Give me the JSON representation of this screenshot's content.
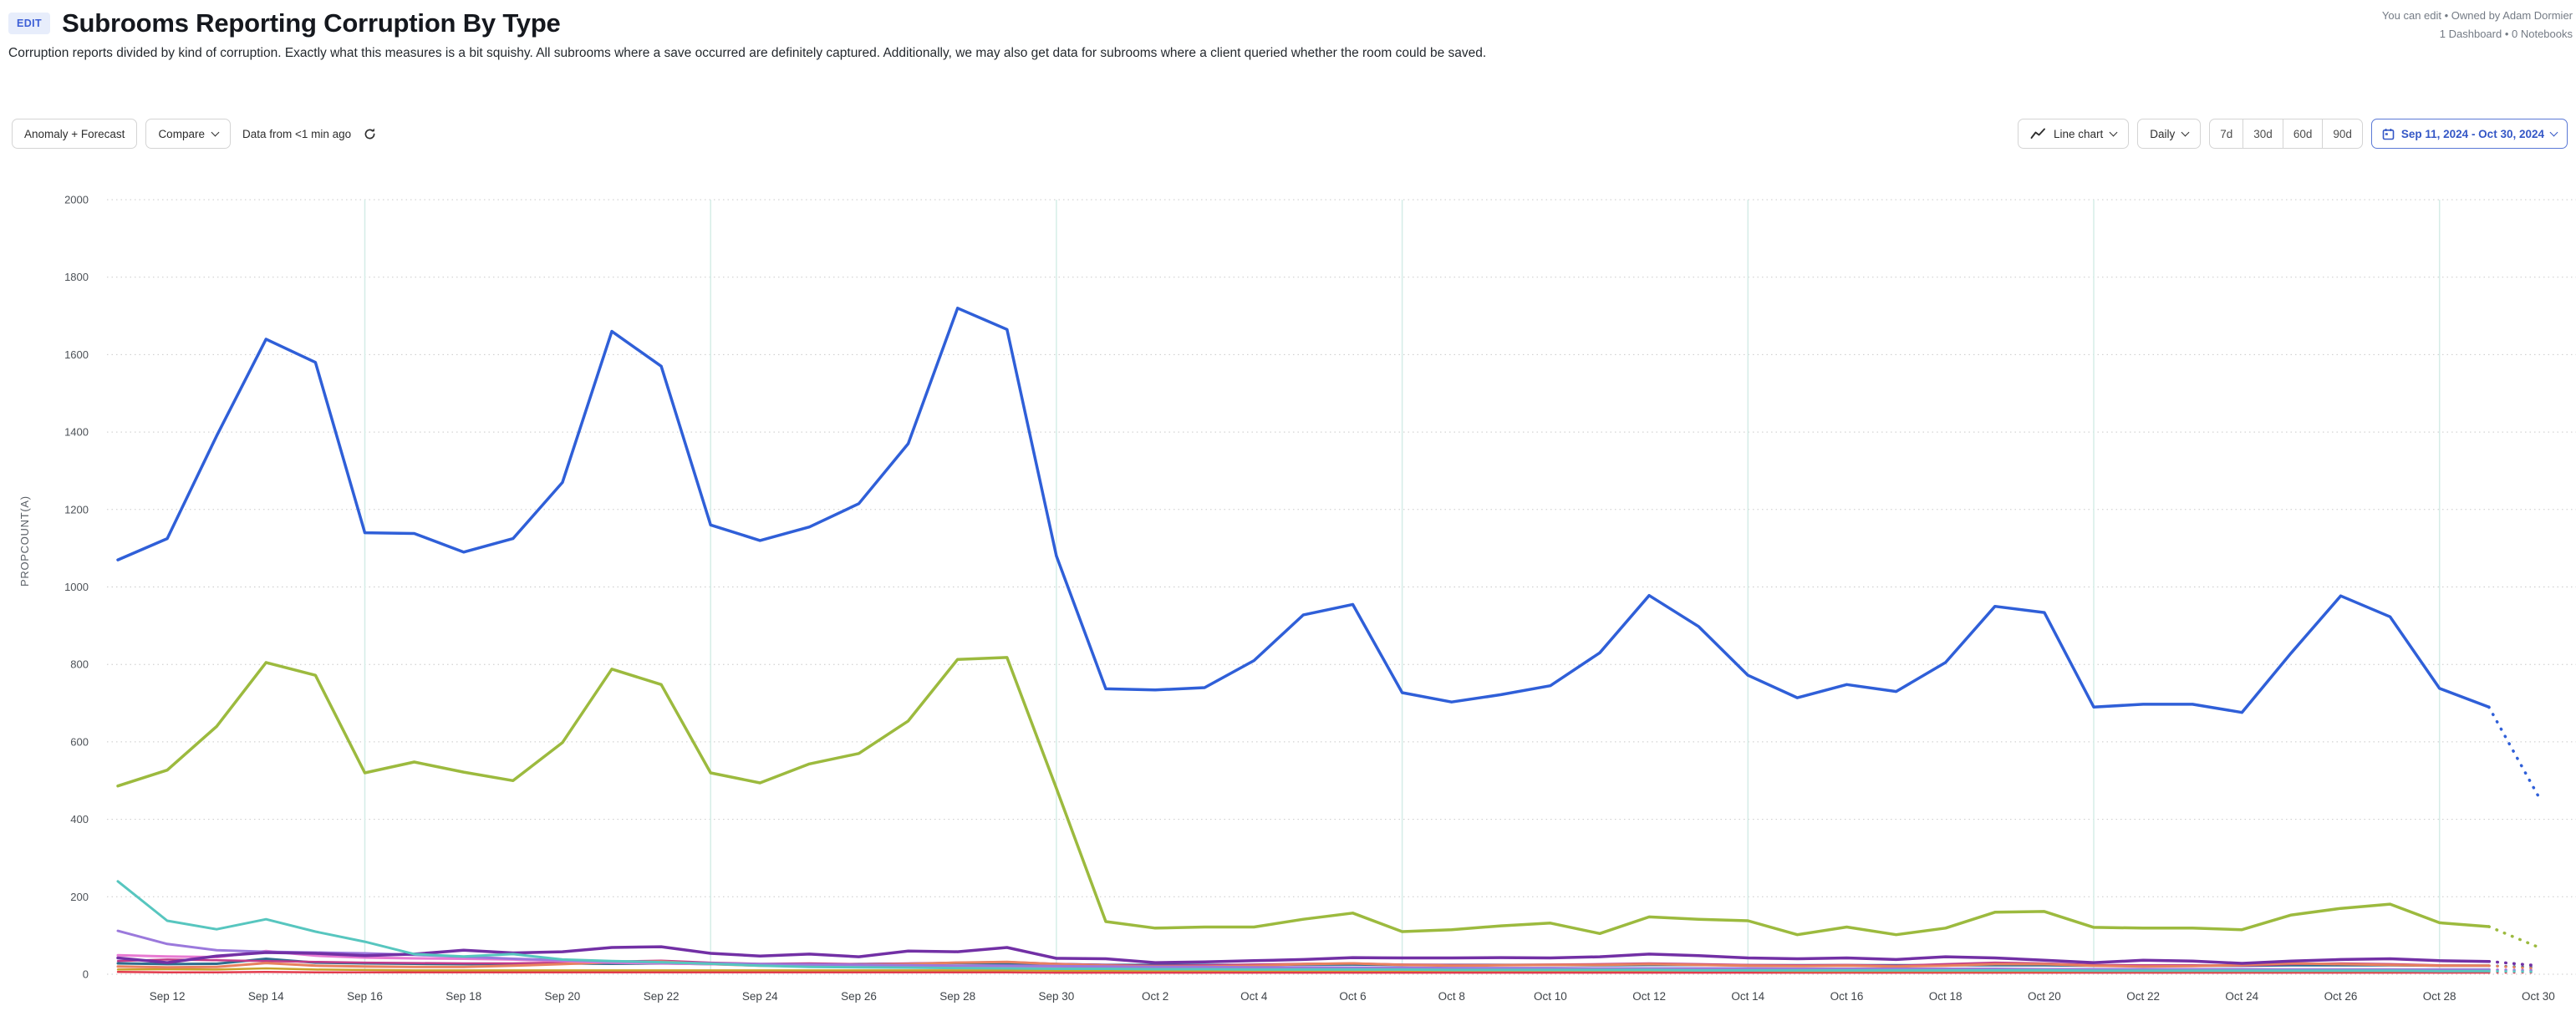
{
  "header": {
    "edit_badge": "EDIT",
    "title": "Subrooms Reporting Corruption By Type",
    "description": "Corruption reports divided by kind of corruption. Exactly what this measures is a bit squishy. All subrooms where a save occurred are definitely captured. Additionally, we may also get data for subrooms where a client queried whether the room could be saved.",
    "meta_line1": "You can edit • Owned by Adam Dormier",
    "meta_line2": "1 Dashboard • 0 Notebooks"
  },
  "toolbar": {
    "anomaly_button": "Anomaly + Forecast",
    "compare_button": "Compare",
    "data_freshness": "Data from <1 min ago",
    "chart_type_button": "Line chart",
    "interval_button": "Daily",
    "range_buttons": [
      "7d",
      "30d",
      "60d",
      "90d"
    ],
    "date_range": "Sep 11, 2024 - Oct 30, 2024"
  },
  "chart_data": {
    "type": "line",
    "ylabel": "PROPCOUNT(A)",
    "ylim": [
      0,
      2000
    ],
    "y_ticks": [
      0,
      200,
      400,
      600,
      800,
      1000,
      1200,
      1400,
      1600,
      1800,
      2000
    ],
    "grid": {
      "h_dotted": true,
      "weekly_vlines": [
        "Sep 16",
        "Sep 23",
        "Sep 30",
        "Oct 7",
        "Oct 14",
        "Oct 21",
        "Oct 28"
      ]
    },
    "forecast_date": "Oct 30",
    "dates": [
      "Sep 11",
      "Sep 12",
      "Sep 13",
      "Sep 14",
      "Sep 15",
      "Sep 16",
      "Sep 17",
      "Sep 18",
      "Sep 19",
      "Sep 20",
      "Sep 21",
      "Sep 22",
      "Sep 23",
      "Sep 24",
      "Sep 25",
      "Sep 26",
      "Sep 27",
      "Sep 28",
      "Sep 29",
      "Sep 30",
      "Oct 1",
      "Oct 2",
      "Oct 3",
      "Oct 4",
      "Oct 5",
      "Oct 6",
      "Oct 7",
      "Oct 8",
      "Oct 9",
      "Oct 10",
      "Oct 11",
      "Oct 12",
      "Oct 13",
      "Oct 14",
      "Oct 15",
      "Oct 16",
      "Oct 17",
      "Oct 18",
      "Oct 19",
      "Oct 20",
      "Oct 21",
      "Oct 22",
      "Oct 23",
      "Oct 24",
      "Oct 25",
      "Oct 26",
      "Oct 27",
      "Oct 28",
      "Oct 29",
      "Oct 30"
    ],
    "series": [
      {
        "name": "series-red",
        "color": "#e23b4d",
        "width": 2.5,
        "forecast": 4,
        "values": [
          6,
          5,
          5,
          6,
          5,
          5,
          5,
          5,
          5,
          5,
          5,
          5,
          5,
          5,
          5,
          5,
          5,
          5,
          5,
          4,
          4,
          4,
          4,
          4,
          4,
          4,
          4,
          4,
          4,
          4,
          4,
          4,
          4,
          4,
          4,
          4,
          4,
          4,
          4,
          4,
          4,
          4,
          4,
          4,
          4,
          4,
          4,
          4,
          4
        ]
      },
      {
        "name": "series-mustard",
        "color": "#c9a22a",
        "width": 2.5,
        "forecast": 7,
        "values": [
          12,
          13,
          12,
          15,
          12,
          11,
          10,
          10,
          10,
          10,
          10,
          10,
          10,
          10,
          10,
          10,
          10,
          10,
          10,
          9,
          9,
          9,
          9,
          9,
          9,
          9,
          9,
          9,
          9,
          9,
          9,
          9,
          9,
          9,
          8,
          8,
          8,
          8,
          8,
          8,
          8,
          8,
          8,
          8,
          8,
          8,
          8,
          8,
          8
        ]
      },
      {
        "name": "series-steel",
        "color": "#2e6d8e",
        "width": 3,
        "forecast": 18,
        "values": [
          28,
          26,
          27,
          40,
          30,
          28,
          27,
          26,
          27,
          28,
          27,
          28,
          26,
          25,
          25,
          26,
          27,
          29,
          28,
          26,
          24,
          24,
          24,
          24,
          25,
          25,
          24,
          24,
          24,
          24,
          23,
          24,
          24,
          23,
          23,
          23,
          23,
          23,
          23,
          23,
          22,
          22,
          22,
          22,
          23,
          23,
          23,
          22,
          22
        ]
      },
      {
        "name": "series-magenta",
        "color": "#c03a8a",
        "width": 2.5,
        "forecast": 15,
        "values": [
          34,
          38,
          36,
          34,
          32,
          30,
          29,
          28,
          28,
          30,
          33,
          35,
          30,
          27,
          28,
          26,
          28,
          30,
          32,
          27,
          24,
          22,
          23,
          25,
          27,
          28,
          25,
          24,
          24,
          25,
          26,
          28,
          26,
          24,
          23,
          24,
          22,
          26,
          30,
          28,
          24,
          23,
          23,
          22,
          26,
          28,
          26,
          23,
          22
        ]
      },
      {
        "name": "series-coral",
        "color": "#e8815f",
        "width": 3,
        "forecast": 14,
        "values": [
          20,
          18,
          19,
          29,
          22,
          20,
          19,
          19,
          22,
          26,
          31,
          33,
          26,
          22,
          23,
          24,
          26,
          30,
          32,
          26,
          22,
          20,
          20,
          22,
          26,
          28,
          24,
          22,
          23,
          24,
          24,
          26,
          24,
          22,
          21,
          22,
          20,
          22,
          26,
          26,
          22,
          20,
          21,
          24,
          28,
          26,
          24,
          22,
          22
        ]
      },
      {
        "name": "series-orchid",
        "color": "#e87ad2",
        "width": 3,
        "forecast": 9,
        "values": [
          49,
          46,
          44,
          60,
          48,
          43,
          41,
          40,
          38,
          34,
          30,
          28,
          26,
          24,
          22,
          20,
          19,
          18,
          17,
          16,
          15,
          14,
          14,
          13,
          13,
          13,
          12,
          12,
          12,
          12,
          12,
          13,
          12,
          12,
          11,
          11,
          11,
          11,
          12,
          12,
          11,
          11,
          11,
          11,
          12,
          12,
          12,
          11,
          11
        ]
      },
      {
        "name": "series-violet",
        "color": "#9b79dc",
        "width": 3,
        "forecast": 10,
        "values": [
          112,
          78,
          62,
          58,
          56,
          54,
          50,
          45,
          40,
          36,
          33,
          30,
          28,
          26,
          25,
          24,
          23,
          22,
          22,
          21,
          20,
          19,
          19,
          18,
          18,
          17,
          17,
          16,
          16,
          16,
          15,
          15,
          15,
          15,
          14,
          14,
          14,
          14,
          14,
          13,
          13,
          13,
          13,
          13,
          12,
          12,
          12,
          12,
          12
        ]
      },
      {
        "name": "series-purple",
        "color": "#7230a5",
        "width": 3.5,
        "forecast": 22,
        "values": [
          42,
          30,
          47,
          56,
          54,
          48,
          52,
          62,
          55,
          58,
          69,
          71,
          54,
          47,
          52,
          45,
          60,
          58,
          69,
          41,
          40,
          30,
          32,
          35,
          38,
          43,
          42,
          42,
          43,
          42,
          45,
          52,
          48,
          42,
          40,
          42,
          38,
          45,
          42,
          36,
          30,
          36,
          34,
          28,
          34,
          38,
          40,
          35,
          33
        ]
      },
      {
        "name": "series-teal",
        "color": "#57c6bf",
        "width": 3,
        "forecast": 6,
        "values": [
          240,
          138,
          116,
          142,
          110,
          84,
          52,
          46,
          52,
          38,
          34,
          31,
          27,
          22,
          19,
          18,
          17,
          16,
          15,
          14,
          14,
          13,
          13,
          12,
          12,
          12,
          12,
          11,
          11,
          11,
          11,
          11,
          10,
          10,
          10,
          10,
          10,
          10,
          10,
          10,
          9,
          9,
          9,
          9,
          9,
          9,
          9,
          8,
          8
        ]
      },
      {
        "name": "series-olive",
        "color": "#9cba3e",
        "width": 3.5,
        "forecast": 70,
        "values": [
          486,
          527,
          640,
          805,
          772,
          520,
          548,
          522,
          500,
          598,
          788,
          748,
          520,
          494,
          543,
          570,
          654,
          813,
          818,
          480,
          136,
          119,
          122,
          122,
          142,
          158,
          110,
          115,
          125,
          132,
          105,
          148,
          142,
          138,
          102,
          122,
          102,
          119,
          160,
          162,
          121,
          119,
          119,
          115,
          153,
          170,
          181,
          133,
          123
        ]
      },
      {
        "name": "series-blue",
        "color": "#2f5fd8",
        "width": 3.5,
        "forecast": 460,
        "values": [
          1070,
          1125,
          1390,
          1640,
          1580,
          1140,
          1138,
          1090,
          1125,
          1270,
          1660,
          1570,
          1160,
          1120,
          1155,
          1215,
          1370,
          1720,
          1665,
          1080,
          737,
          734,
          740,
          810,
          928,
          955,
          727,
          703,
          722,
          745,
          830,
          978,
          898,
          772,
          714,
          748,
          730,
          805,
          950,
          934,
          690,
          697,
          697,
          676,
          830,
          977,
          923,
          738,
          690
        ]
      }
    ]
  }
}
